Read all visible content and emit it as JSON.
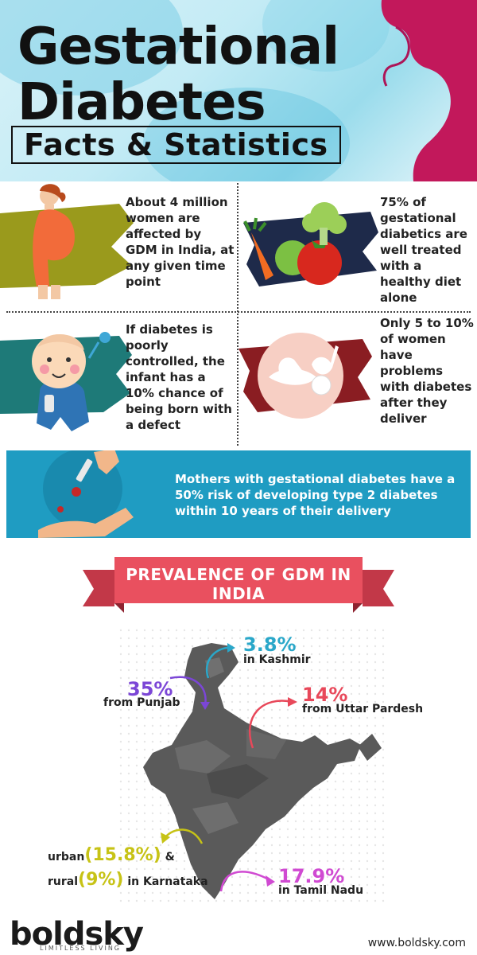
{
  "header": {
    "title_line1": "Gestational",
    "title_line2": "Diabetes",
    "subtitle": "Facts & Statistics"
  },
  "facts": {
    "f1": "About 4 million women are affected by GDM in India, at any given time point",
    "f2": "75% of gestational diabetics are well treated with a healthy diet alone",
    "f3": "If diabetes is poorly controlled, the infant has a 10% chance of being born with a defect",
    "f4": "Only 5 to 10% of women have problems with diabetes after they deliver"
  },
  "banner": {
    "text": "Mothers with gestational diabetes have a 50% risk of developing type 2 diabetes within 10 years of their delivery"
  },
  "prevalence": {
    "title": "PREVALENCE OF GDM IN INDIA",
    "kashmir_value": "3.8%",
    "kashmir_label": "in Kashmir",
    "punjab_value": "35%",
    "punjab_label": "from Punjab",
    "up_value": "14%",
    "up_label": "from Uttar Pardesh",
    "karnataka_prefix_urban": "urban",
    "karnataka_urban": "(15.8%)",
    "karnataka_amp": "&",
    "karnataka_prefix_rural": "rural",
    "karnataka_rural": "(9%)",
    "karnataka_suffix": "in Karnataka",
    "tn_value": "17.9%",
    "tn_label": "in Tamil Nadu"
  },
  "footer": {
    "logo": "boldsky",
    "tagline": "LIMITLESS LIVING",
    "url": "www.boldsky.com"
  },
  "colors": {
    "kashmir": "#2aa7c9",
    "punjab": "#7b46d6",
    "up": "#e8485a",
    "karnataka": "#c7c316",
    "tn": "#d04ad2",
    "banner": "#1f9cc2",
    "ribbon": "#e9505f"
  }
}
